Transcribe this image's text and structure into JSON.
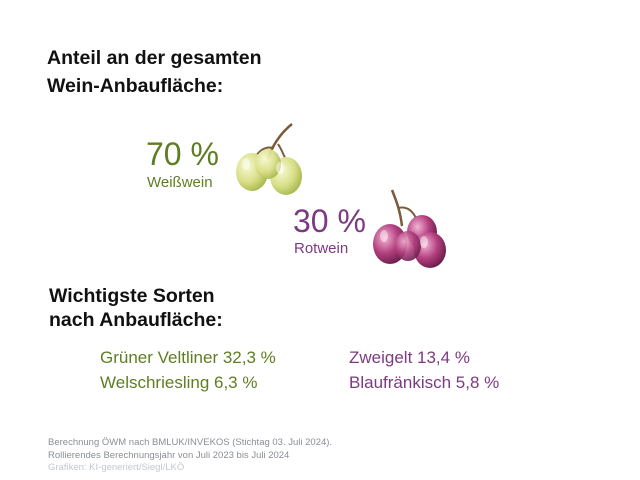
{
  "heading": {
    "line1": "Anteil an der gesamten",
    "line2": "Wein-Anbaufläche:"
  },
  "shares": {
    "white": {
      "percent": "70 %",
      "label": "Weißwein"
    },
    "red": {
      "percent": "30 %",
      "label": "Rotwein"
    }
  },
  "varieties_heading": {
    "line1": "Wichtigste Sorten",
    "line2": "nach Anbaufläche:"
  },
  "varieties": {
    "white_1": "Grüner Veltliner 32,3 %",
    "white_2": "Welschriesling 6,3 %",
    "red_1": "Zweigelt 13,4 %",
    "red_2": "Blaufränkisch 5,8 %"
  },
  "footer": {
    "line1": "Berechnung ÖWM nach BMLUK/INVEKOS (Stichtag 03. Juli 2024).",
    "line2": "Rollierendes Berechnungsjahr von Juli 2023 bis Juli 2024",
    "line3": "Grafiken: KI-generiert/Siegl/LKÖ"
  },
  "colors": {
    "white_wine": "#5f7d22",
    "red_wine": "#7d3a82",
    "heading": "#111111"
  },
  "icons": {
    "white": "white-grapes-icon",
    "red": "red-grapes-icon"
  }
}
